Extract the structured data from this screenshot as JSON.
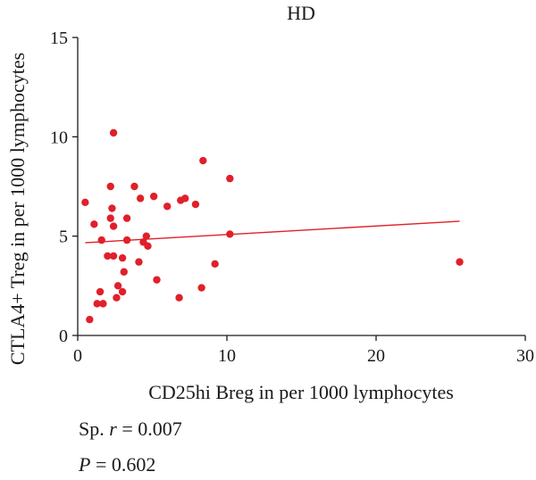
{
  "chart_data": {
    "type": "scatter",
    "title": "HD",
    "xlabel": "CD25hi Breg in per 1000 lymphocytes",
    "ylabel": "CTLA4+ Treg in per 1000 lymphocytes",
    "xlim": [
      0,
      30
    ],
    "ylim": [
      0,
      15
    ],
    "xticks": [
      "0",
      "10",
      "20",
      "30"
    ],
    "yticks": [
      "0",
      "5",
      "10",
      "15"
    ],
    "grid": false,
    "point_color": "#e0202a",
    "line_color": "#e0202a",
    "points": [
      {
        "x": 0.5,
        "y": 6.7
      },
      {
        "x": 0.8,
        "y": 0.8
      },
      {
        "x": 1.1,
        "y": 5.6
      },
      {
        "x": 1.3,
        "y": 1.6
      },
      {
        "x": 1.5,
        "y": 2.2
      },
      {
        "x": 1.6,
        "y": 4.8
      },
      {
        "x": 1.7,
        "y": 1.6
      },
      {
        "x": 2.0,
        "y": 4.0
      },
      {
        "x": 2.2,
        "y": 5.9
      },
      {
        "x": 2.2,
        "y": 7.5
      },
      {
        "x": 2.3,
        "y": 6.4
      },
      {
        "x": 2.4,
        "y": 10.2
      },
      {
        "x": 2.4,
        "y": 5.5
      },
      {
        "x": 2.4,
        "y": 4.0
      },
      {
        "x": 2.6,
        "y": 1.9
      },
      {
        "x": 2.7,
        "y": 2.5
      },
      {
        "x": 3.0,
        "y": 3.9
      },
      {
        "x": 3.0,
        "y": 2.2
      },
      {
        "x": 3.1,
        "y": 3.2
      },
      {
        "x": 3.3,
        "y": 5.9
      },
      {
        "x": 3.3,
        "y": 4.8
      },
      {
        "x": 3.8,
        "y": 7.5
      },
      {
        "x": 4.1,
        "y": 3.7
      },
      {
        "x": 4.2,
        "y": 6.9
      },
      {
        "x": 4.4,
        "y": 4.7
      },
      {
        "x": 4.6,
        "y": 5.0
      },
      {
        "x": 4.7,
        "y": 4.5
      },
      {
        "x": 5.1,
        "y": 7.0
      },
      {
        "x": 5.3,
        "y": 2.8
      },
      {
        "x": 6.0,
        "y": 6.5
      },
      {
        "x": 6.8,
        "y": 1.9
      },
      {
        "x": 6.9,
        "y": 6.8
      },
      {
        "x": 7.2,
        "y": 6.9
      },
      {
        "x": 7.9,
        "y": 6.6
      },
      {
        "x": 8.3,
        "y": 2.4
      },
      {
        "x": 8.4,
        "y": 8.8
      },
      {
        "x": 9.2,
        "y": 3.6
      },
      {
        "x": 10.2,
        "y": 7.9
      },
      {
        "x": 10.2,
        "y": 5.1
      },
      {
        "x": 25.6,
        "y": 3.7
      }
    ],
    "fit_line": {
      "x": [
        0.5,
        25.6
      ],
      "y": [
        4.67,
        5.75
      ]
    }
  },
  "stats": {
    "r_prefix": "Sp. ",
    "r_symbol": "r",
    "r_value": " = 0.007",
    "p_symbol": "P",
    "p_value": " = 0.602"
  }
}
